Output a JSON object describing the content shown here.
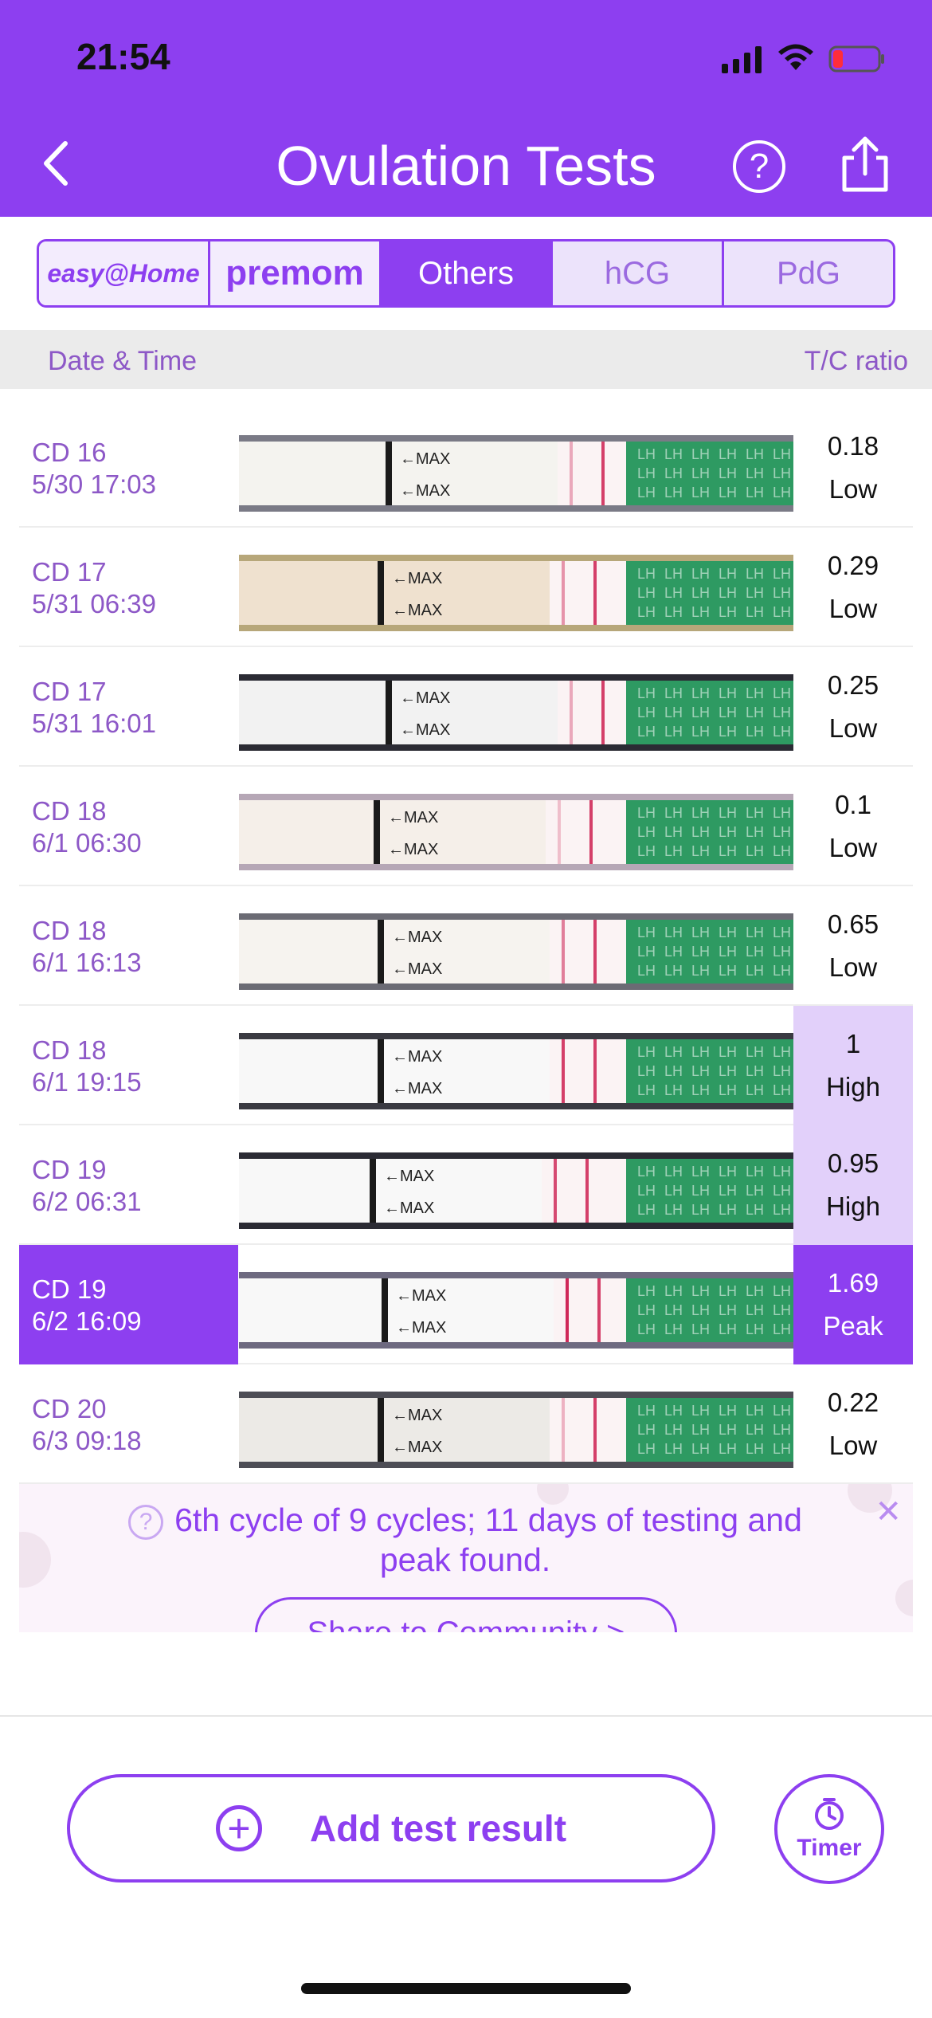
{
  "status": {
    "time": "21:54"
  },
  "header": {
    "title": "Ovulation Tests"
  },
  "tabs": [
    {
      "label": "easy@Home",
      "type": "brand"
    },
    {
      "label": "premom",
      "type": "brand"
    },
    {
      "label": "Others",
      "type": "active"
    },
    {
      "label": "hCG",
      "type": "normal"
    },
    {
      "label": "PdG",
      "type": "normal"
    }
  ],
  "columns": {
    "date": "Date & Time",
    "ratio": "T/C ratio"
  },
  "rows": [
    {
      "cd": "CD 16",
      "datetime": "5/30 17:03",
      "value": "0.18",
      "level": "Low"
    },
    {
      "cd": "CD 17",
      "datetime": "5/31 06:39",
      "value": "0.29",
      "level": "Low"
    },
    {
      "cd": "CD 17",
      "datetime": "5/31 16:01",
      "value": "0.25",
      "level": "Low"
    },
    {
      "cd": "CD 18",
      "datetime": "6/1 06:30",
      "value": "0.1",
      "level": "Low"
    },
    {
      "cd": "CD 18",
      "datetime": "6/1 16:13",
      "value": "0.65",
      "level": "Low"
    },
    {
      "cd": "CD 18",
      "datetime": "6/1 19:15",
      "value": "1",
      "level": "High"
    },
    {
      "cd": "CD 19",
      "datetime": "6/2 06:31",
      "value": "0.95",
      "level": "High"
    },
    {
      "cd": "CD 19",
      "datetime": "6/2 16:09",
      "value": "1.69",
      "level": "Peak"
    },
    {
      "cd": "CD 20",
      "datetime": "6/3 09:18",
      "value": "0.22",
      "level": "Low"
    }
  ],
  "strip": {
    "marker": "←MAX",
    "lh": "LH"
  },
  "banner": {
    "message": "6th cycle of 9 cycles; 11 days of testing and peak found.",
    "share_label": "Share to Community  >"
  },
  "actions": {
    "add_label": "Add test result",
    "timer_label": "Timer"
  },
  "colors": {
    "accent": "#8d3ff0",
    "high_bg": "#e2d0fa",
    "strip_green": "#2e9a62"
  }
}
